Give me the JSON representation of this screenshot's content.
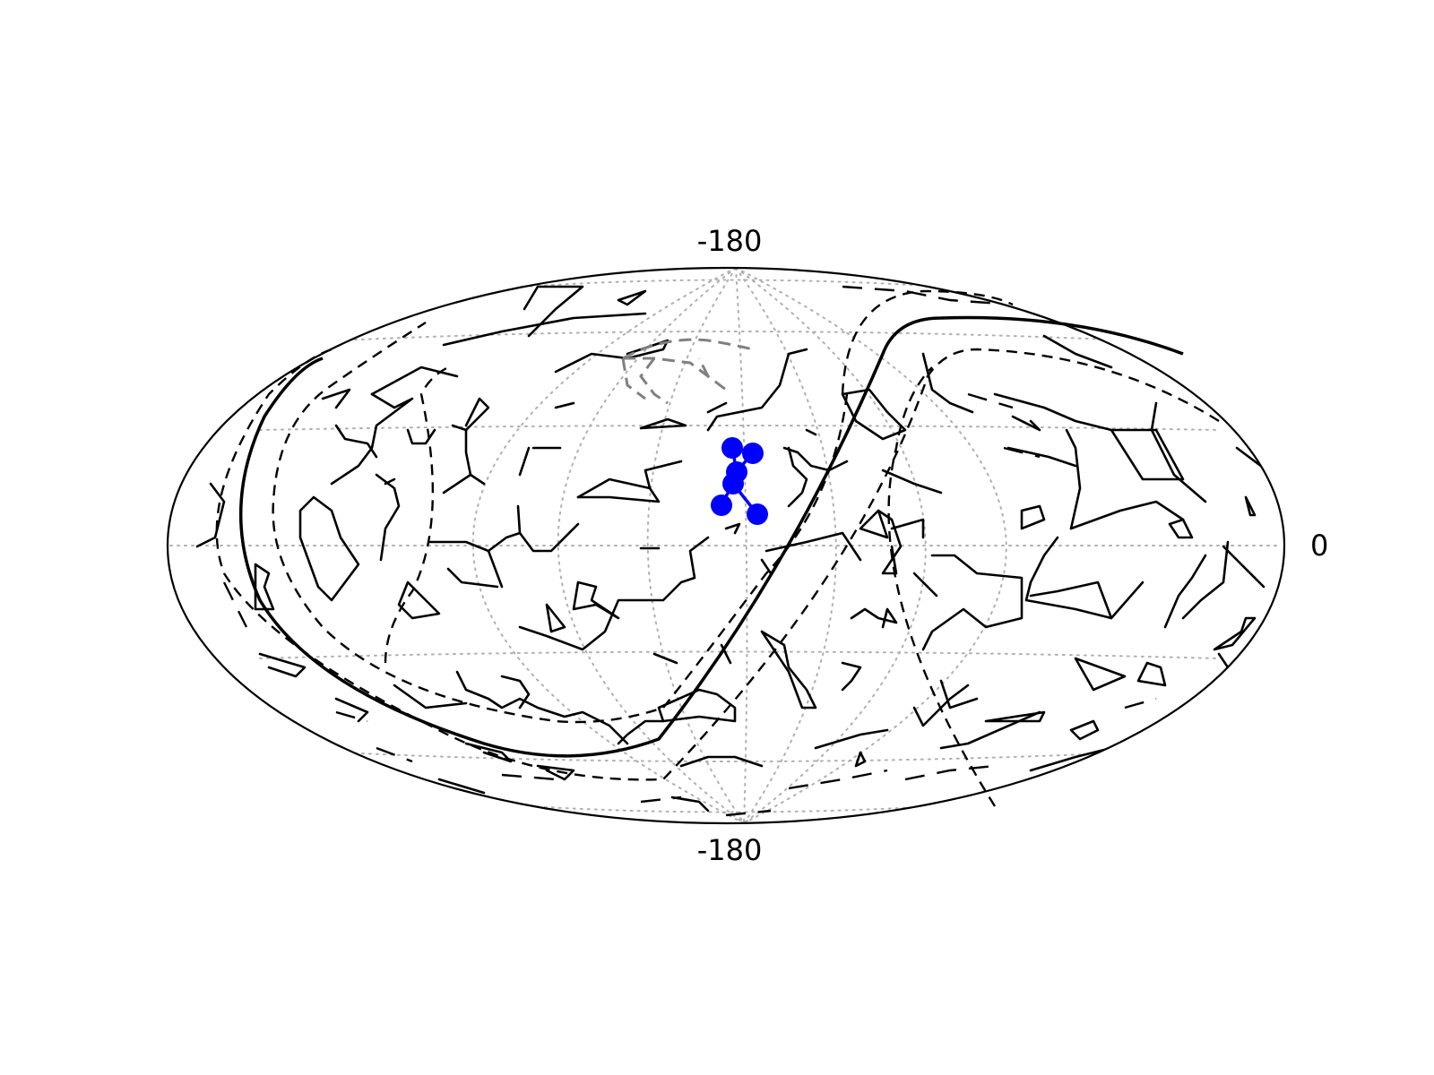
{
  "map": {
    "projection": "hammer",
    "labels": {
      "top": "-180",
      "bottom": "-180",
      "right": "0"
    },
    "highlight_color": "#0000ff",
    "constellation_color": "#000000",
    "grid_color": "#b0b0b0",
    "secondary_color": "#808080"
  }
}
